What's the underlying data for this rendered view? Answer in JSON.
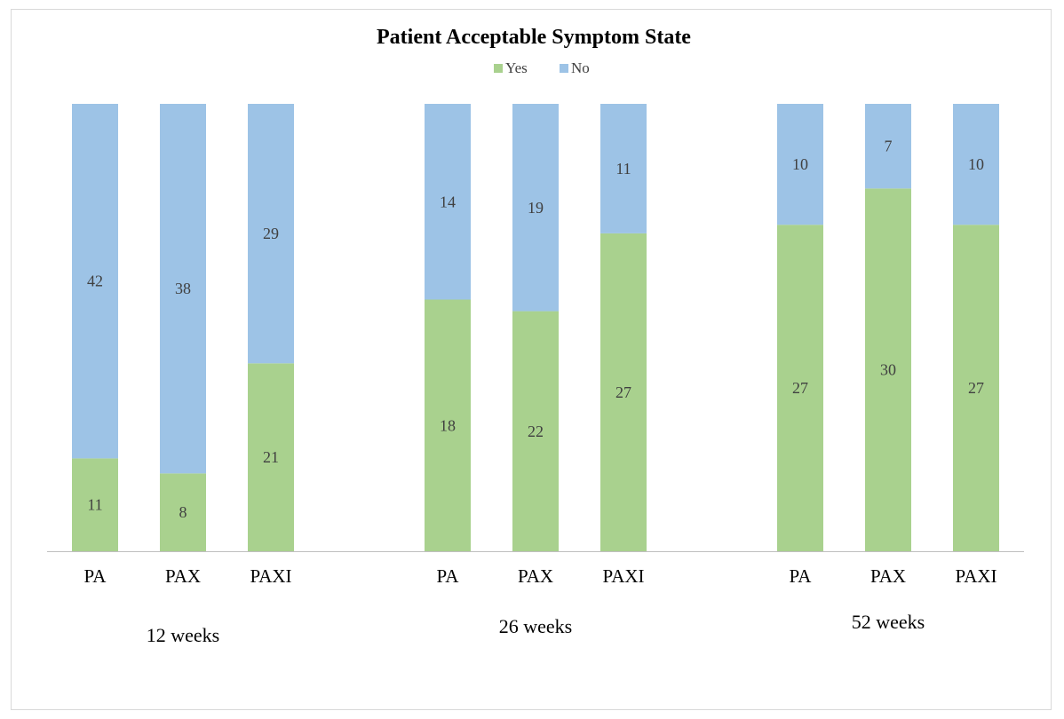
{
  "chart_data": {
    "type": "bar",
    "stacked": "percent",
    "title": "Patient Acceptable Symptom State",
    "legend": {
      "position": "top",
      "entries": [
        "Yes",
        "No"
      ]
    },
    "categories": [
      "PA",
      "PAX",
      "PAXI",
      "PA",
      "PAX",
      "PAXI",
      "PA",
      "PAX",
      "PAXI"
    ],
    "groups": [
      {
        "label": "12 weeks",
        "categories": [
          "PA",
          "PAX",
          "PAXI"
        ]
      },
      {
        "label": "26 weeks",
        "categories": [
          "PA",
          "PAX",
          "PAXI"
        ]
      },
      {
        "label": "52 weeks",
        "categories": [
          "PA",
          "PAX",
          "PAXI"
        ]
      }
    ],
    "series": [
      {
        "name": "Yes",
        "color": "#a9d18e",
        "values": [
          11,
          8,
          21,
          18,
          22,
          27,
          27,
          30,
          27
        ]
      },
      {
        "name": "No",
        "color": "#9dc3e6",
        "values": [
          42,
          38,
          29,
          14,
          19,
          11,
          10,
          7,
          10
        ]
      }
    ],
    "grid": false,
    "data_labels": true
  }
}
